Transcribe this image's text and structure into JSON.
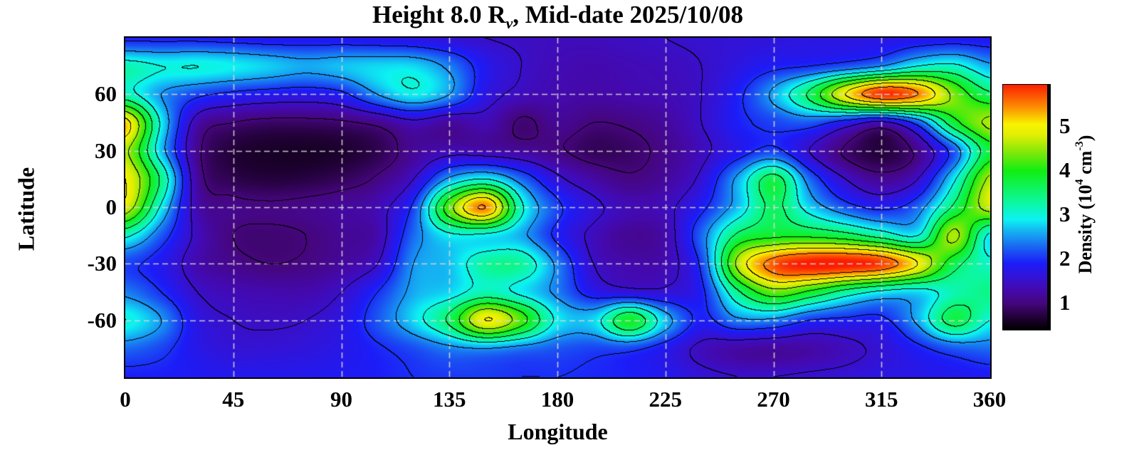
{
  "title": {
    "prefix": "Height 8.0 R",
    "subscript": "v",
    "suffix": ", Mid-date 2025/10/08"
  },
  "axes": {
    "x": {
      "label": "Longitude",
      "ticks": [
        0,
        45,
        90,
        135,
        180,
        225,
        270,
        315,
        360
      ],
      "range": [
        0,
        360
      ]
    },
    "y": {
      "label": "Latitude",
      "ticks": [
        60,
        30,
        0,
        -30,
        -60
      ],
      "range": [
        -90,
        90
      ]
    }
  },
  "colorbar": {
    "label": {
      "prefix": "Density (10",
      "sup1": "4",
      "mid": " cm",
      "sup2": "-3",
      "suffix": ")"
    },
    "ticks": [
      5,
      4,
      3,
      2,
      1
    ],
    "range": [
      0.4,
      5.95
    ]
  },
  "style": {
    "background": "#ffffff",
    "text_color": "#000000",
    "frame_color": "#000000",
    "contour_color": "#000000",
    "grid_color": "#d9d9d9"
  },
  "chart_data": {
    "type": "heatmap",
    "title": "Height 8.0 R_v, Mid-date 2025/10/08",
    "xlabel": "Longitude",
    "ylabel": "Latitude",
    "colorbar_label": "Density (10^4 cm^-3)",
    "xlim": [
      0,
      360
    ],
    "ylim": [
      -90,
      90
    ],
    "value_range": [
      0.4,
      5.95
    ],
    "grid_on": true,
    "x_gridlines": [
      45,
      90,
      135,
      180,
      225,
      270,
      315
    ],
    "y_gridlines": [
      60,
      30,
      0,
      -30,
      -60
    ],
    "contour_levels": [
      1.0,
      1.5,
      2.0,
      2.5,
      3.0,
      3.5,
      4.0,
      4.5,
      5.0,
      5.5
    ],
    "colormap": [
      [
        0.4,
        "#000000"
      ],
      [
        0.7,
        "#23013a"
      ],
      [
        1.0,
        "#45067c"
      ],
      [
        1.3,
        "#4409ae"
      ],
      [
        1.6,
        "#3313d6"
      ],
      [
        1.9,
        "#1c1cf8"
      ],
      [
        2.2,
        "#1a55f2"
      ],
      [
        2.6,
        "#16aaf2"
      ],
      [
        2.9,
        "#0cf2f2"
      ],
      [
        3.3,
        "#0cf79c"
      ],
      [
        4.0,
        "#12ee12"
      ],
      [
        4.4,
        "#7ce80a"
      ],
      [
        4.8,
        "#e0ee04"
      ],
      [
        5.05,
        "#f8f400"
      ],
      [
        5.45,
        "#fc8b02"
      ],
      [
        5.95,
        "#fb1e03"
      ]
    ],
    "grid": {
      "lon_start": 0,
      "lon_step": 15,
      "lat_start": 90,
      "lat_step": -15,
      "values": [
        [
          1.9,
          1.9,
          1.9,
          1.85,
          1.8,
          1.8,
          1.8,
          1.75,
          1.7,
          1.6,
          1.5,
          1.45,
          1.4,
          1.4,
          1.45,
          1.5,
          1.55,
          1.6,
          1.65,
          1.7,
          1.7,
          1.7,
          1.75,
          1.8,
          1.8
        ],
        [
          3.2,
          3.0,
          3.0,
          2.9,
          2.75,
          2.6,
          2.7,
          2.8,
          2.8,
          2.4,
          1.8,
          1.5,
          1.35,
          1.3,
          1.35,
          1.4,
          1.5,
          1.7,
          1.9,
          2.0,
          2.2,
          2.5,
          3.0,
          3.1,
          2.6
        ],
        [
          3.2,
          2.5,
          2.1,
          1.9,
          1.8,
          1.75,
          1.9,
          2.5,
          2.9,
          2.5,
          1.7,
          1.4,
          1.3,
          1.25,
          1.3,
          1.35,
          1.5,
          1.9,
          2.6,
          3.6,
          5.0,
          5.85,
          5.5,
          4.4,
          3.6
        ],
        [
          5.2,
          2.9,
          1.3,
          1.0,
          0.9,
          0.9,
          0.95,
          1.1,
          1.4,
          1.2,
          1.35,
          0.95,
          1.15,
          1.0,
          1.05,
          1.2,
          1.5,
          1.9,
          2.1,
          2.2,
          1.8,
          1.4,
          2.2,
          3.8,
          4.6
        ],
        [
          4.6,
          2.7,
          1.1,
          0.7,
          0.62,
          0.6,
          0.65,
          0.8,
          1.15,
          1.35,
          1.3,
          1.2,
          1.05,
          0.85,
          0.9,
          1.1,
          1.4,
          1.8,
          2.1,
          1.5,
          0.95,
          0.72,
          1.1,
          2.2,
          3.8
        ],
        [
          5.0,
          3.4,
          1.2,
          0.8,
          0.72,
          0.75,
          0.85,
          1.05,
          1.5,
          2.6,
          3.0,
          2.3,
          1.6,
          1.25,
          1.05,
          1.2,
          1.6,
          2.6,
          3.7,
          2.3,
          1.5,
          1.15,
          1.5,
          2.9,
          4.6
        ],
        [
          4.8,
          2.9,
          1.3,
          1.1,
          1.05,
          1.1,
          1.2,
          1.35,
          2.1,
          4.3,
          5.5,
          3.1,
          2.1,
          1.6,
          1.35,
          1.4,
          1.9,
          2.7,
          3.6,
          2.8,
          2.2,
          1.9,
          2.3,
          3.6,
          4.7
        ],
        [
          3.1,
          2.2,
          1.4,
          1.0,
          0.95,
          1.0,
          1.15,
          1.3,
          2.3,
          2.9,
          2.9,
          2.6,
          1.9,
          1.4,
          1.15,
          1.3,
          2.3,
          3.6,
          3.9,
          3.9,
          3.7,
          3.3,
          3.0,
          4.6,
          2.9
        ],
        [
          2.1,
          1.8,
          1.3,
          1.1,
          1.0,
          1.05,
          1.2,
          1.5,
          2.5,
          2.7,
          3.3,
          3.3,
          2.4,
          1.5,
          1.3,
          1.35,
          2.1,
          4.6,
          5.7,
          6.0,
          6.0,
          5.8,
          5.0,
          3.7,
          3.1
        ],
        [
          2.4,
          2.0,
          1.5,
          1.35,
          1.3,
          1.3,
          1.5,
          2.0,
          2.6,
          2.8,
          3.2,
          2.9,
          2.4,
          1.8,
          1.65,
          1.6,
          1.9,
          3.4,
          4.3,
          3.9,
          3.3,
          2.9,
          2.8,
          3.2,
          3.4
        ],
        [
          3.0,
          2.5,
          1.7,
          1.5,
          1.45,
          1.5,
          1.7,
          2.2,
          2.8,
          3.6,
          5.0,
          4.2,
          2.9,
          2.8,
          3.9,
          2.7,
          1.9,
          2.4,
          2.4,
          2.0,
          1.9,
          1.9,
          2.6,
          3.7,
          3.0
        ],
        [
          2.3,
          2.1,
          1.75,
          1.6,
          1.6,
          1.65,
          1.75,
          1.95,
          2.15,
          2.4,
          2.5,
          2.35,
          2.2,
          2.1,
          2.1,
          1.8,
          1.4,
          1.25,
          1.2,
          1.25,
          1.4,
          1.6,
          1.9,
          2.2,
          2.3
        ],
        [
          1.9,
          1.9,
          1.85,
          1.8,
          1.8,
          1.8,
          1.85,
          1.9,
          2.0,
          2.05,
          2.05,
          2.0,
          2.0,
          1.95,
          1.9,
          1.8,
          1.6,
          1.5,
          1.5,
          1.55,
          1.6,
          1.7,
          1.75,
          1.8,
          1.85
        ]
      ]
    }
  }
}
